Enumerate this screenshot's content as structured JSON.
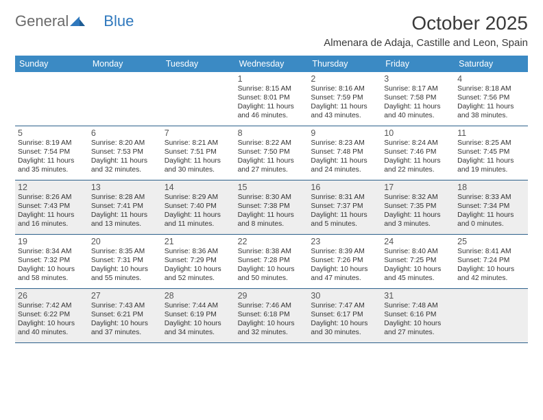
{
  "brand": {
    "part1": "General",
    "part2": "Blue"
  },
  "title": "October 2025",
  "location": "Almenara de Adaja, Castille and Leon, Spain",
  "colors": {
    "header_bg": "#3b8ac4",
    "header_text": "#ffffff",
    "row_divider": "#2b5f8a",
    "alt_row_bg": "#eeeeee",
    "logo_grey": "#6a6a6a",
    "logo_blue": "#2f78bd",
    "text": "#333333",
    "background": "#ffffff"
  },
  "weekdays": [
    "Sunday",
    "Monday",
    "Tuesday",
    "Wednesday",
    "Thursday",
    "Friday",
    "Saturday"
  ],
  "weeks": [
    {
      "grey": false,
      "cells": [
        null,
        null,
        null,
        {
          "n": "1",
          "sr": "Sunrise: 8:15 AM",
          "ss": "Sunset: 8:01 PM",
          "d1": "Daylight: 11 hours",
          "d2": "and 46 minutes."
        },
        {
          "n": "2",
          "sr": "Sunrise: 8:16 AM",
          "ss": "Sunset: 7:59 PM",
          "d1": "Daylight: 11 hours",
          "d2": "and 43 minutes."
        },
        {
          "n": "3",
          "sr": "Sunrise: 8:17 AM",
          "ss": "Sunset: 7:58 PM",
          "d1": "Daylight: 11 hours",
          "d2": "and 40 minutes."
        },
        {
          "n": "4",
          "sr": "Sunrise: 8:18 AM",
          "ss": "Sunset: 7:56 PM",
          "d1": "Daylight: 11 hours",
          "d2": "and 38 minutes."
        }
      ]
    },
    {
      "grey": false,
      "cells": [
        {
          "n": "5",
          "sr": "Sunrise: 8:19 AM",
          "ss": "Sunset: 7:54 PM",
          "d1": "Daylight: 11 hours",
          "d2": "and 35 minutes."
        },
        {
          "n": "6",
          "sr": "Sunrise: 8:20 AM",
          "ss": "Sunset: 7:53 PM",
          "d1": "Daylight: 11 hours",
          "d2": "and 32 minutes."
        },
        {
          "n": "7",
          "sr": "Sunrise: 8:21 AM",
          "ss": "Sunset: 7:51 PM",
          "d1": "Daylight: 11 hours",
          "d2": "and 30 minutes."
        },
        {
          "n": "8",
          "sr": "Sunrise: 8:22 AM",
          "ss": "Sunset: 7:50 PM",
          "d1": "Daylight: 11 hours",
          "d2": "and 27 minutes."
        },
        {
          "n": "9",
          "sr": "Sunrise: 8:23 AM",
          "ss": "Sunset: 7:48 PM",
          "d1": "Daylight: 11 hours",
          "d2": "and 24 minutes."
        },
        {
          "n": "10",
          "sr": "Sunrise: 8:24 AM",
          "ss": "Sunset: 7:46 PM",
          "d1": "Daylight: 11 hours",
          "d2": "and 22 minutes."
        },
        {
          "n": "11",
          "sr": "Sunrise: 8:25 AM",
          "ss": "Sunset: 7:45 PM",
          "d1": "Daylight: 11 hours",
          "d2": "and 19 minutes."
        }
      ]
    },
    {
      "grey": true,
      "cells": [
        {
          "n": "12",
          "sr": "Sunrise: 8:26 AM",
          "ss": "Sunset: 7:43 PM",
          "d1": "Daylight: 11 hours",
          "d2": "and 16 minutes."
        },
        {
          "n": "13",
          "sr": "Sunrise: 8:28 AM",
          "ss": "Sunset: 7:41 PM",
          "d1": "Daylight: 11 hours",
          "d2": "and 13 minutes."
        },
        {
          "n": "14",
          "sr": "Sunrise: 8:29 AM",
          "ss": "Sunset: 7:40 PM",
          "d1": "Daylight: 11 hours",
          "d2": "and 11 minutes."
        },
        {
          "n": "15",
          "sr": "Sunrise: 8:30 AM",
          "ss": "Sunset: 7:38 PM",
          "d1": "Daylight: 11 hours",
          "d2": "and 8 minutes."
        },
        {
          "n": "16",
          "sr": "Sunrise: 8:31 AM",
          "ss": "Sunset: 7:37 PM",
          "d1": "Daylight: 11 hours",
          "d2": "and 5 minutes."
        },
        {
          "n": "17",
          "sr": "Sunrise: 8:32 AM",
          "ss": "Sunset: 7:35 PM",
          "d1": "Daylight: 11 hours",
          "d2": "and 3 minutes."
        },
        {
          "n": "18",
          "sr": "Sunrise: 8:33 AM",
          "ss": "Sunset: 7:34 PM",
          "d1": "Daylight: 11 hours",
          "d2": "and 0 minutes."
        }
      ]
    },
    {
      "grey": false,
      "cells": [
        {
          "n": "19",
          "sr": "Sunrise: 8:34 AM",
          "ss": "Sunset: 7:32 PM",
          "d1": "Daylight: 10 hours",
          "d2": "and 58 minutes."
        },
        {
          "n": "20",
          "sr": "Sunrise: 8:35 AM",
          "ss": "Sunset: 7:31 PM",
          "d1": "Daylight: 10 hours",
          "d2": "and 55 minutes."
        },
        {
          "n": "21",
          "sr": "Sunrise: 8:36 AM",
          "ss": "Sunset: 7:29 PM",
          "d1": "Daylight: 10 hours",
          "d2": "and 52 minutes."
        },
        {
          "n": "22",
          "sr": "Sunrise: 8:38 AM",
          "ss": "Sunset: 7:28 PM",
          "d1": "Daylight: 10 hours",
          "d2": "and 50 minutes."
        },
        {
          "n": "23",
          "sr": "Sunrise: 8:39 AM",
          "ss": "Sunset: 7:26 PM",
          "d1": "Daylight: 10 hours",
          "d2": "and 47 minutes."
        },
        {
          "n": "24",
          "sr": "Sunrise: 8:40 AM",
          "ss": "Sunset: 7:25 PM",
          "d1": "Daylight: 10 hours",
          "d2": "and 45 minutes."
        },
        {
          "n": "25",
          "sr": "Sunrise: 8:41 AM",
          "ss": "Sunset: 7:24 PM",
          "d1": "Daylight: 10 hours",
          "d2": "and 42 minutes."
        }
      ]
    },
    {
      "grey": true,
      "cells": [
        {
          "n": "26",
          "sr": "Sunrise: 7:42 AM",
          "ss": "Sunset: 6:22 PM",
          "d1": "Daylight: 10 hours",
          "d2": "and 40 minutes."
        },
        {
          "n": "27",
          "sr": "Sunrise: 7:43 AM",
          "ss": "Sunset: 6:21 PM",
          "d1": "Daylight: 10 hours",
          "d2": "and 37 minutes."
        },
        {
          "n": "28",
          "sr": "Sunrise: 7:44 AM",
          "ss": "Sunset: 6:19 PM",
          "d1": "Daylight: 10 hours",
          "d2": "and 34 minutes."
        },
        {
          "n": "29",
          "sr": "Sunrise: 7:46 AM",
          "ss": "Sunset: 6:18 PM",
          "d1": "Daylight: 10 hours",
          "d2": "and 32 minutes."
        },
        {
          "n": "30",
          "sr": "Sunrise: 7:47 AM",
          "ss": "Sunset: 6:17 PM",
          "d1": "Daylight: 10 hours",
          "d2": "and 30 minutes."
        },
        {
          "n": "31",
          "sr": "Sunrise: 7:48 AM",
          "ss": "Sunset: 6:16 PM",
          "d1": "Daylight: 10 hours",
          "d2": "and 27 minutes."
        },
        null
      ]
    }
  ]
}
